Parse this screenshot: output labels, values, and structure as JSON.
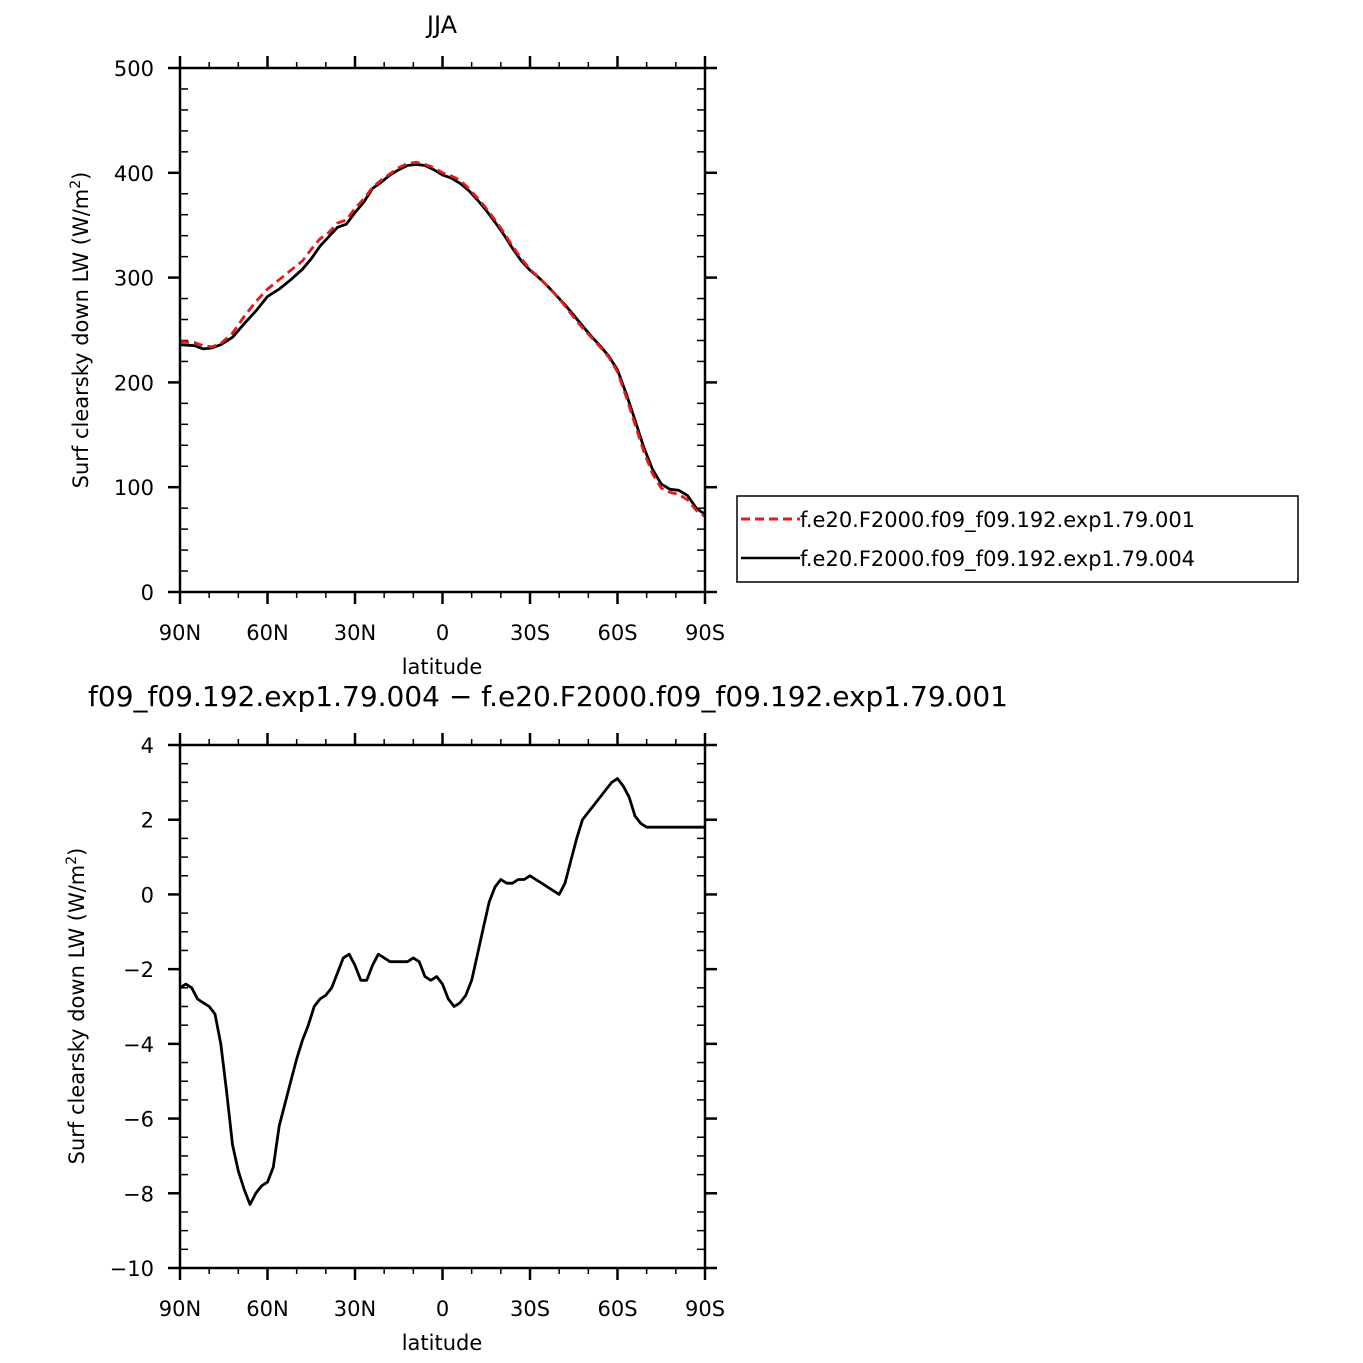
{
  "chart_data": [
    {
      "type": "line",
      "title": "JJA",
      "xlabel": "latitude",
      "ylabel": "Surf clearsky down LW (W/m²)",
      "xlim": [
        90,
        -90
      ],
      "ylim": [
        0,
        500
      ],
      "x_ticks": [
        {
          "value": 90,
          "label": "90N"
        },
        {
          "value": 60,
          "label": "60N"
        },
        {
          "value": 30,
          "label": "30N"
        },
        {
          "value": 0,
          "label": "0"
        },
        {
          "value": -30,
          "label": "30S"
        },
        {
          "value": -60,
          "label": "60S"
        },
        {
          "value": -90,
          "label": "90S"
        }
      ],
      "y_ticks": [
        {
          "value": 0,
          "label": "0"
        },
        {
          "value": 100,
          "label": "100"
        },
        {
          "value": 200,
          "label": "200"
        },
        {
          "value": 300,
          "label": "300"
        },
        {
          "value": 400,
          "label": "400"
        },
        {
          "value": 500,
          "label": "500"
        }
      ],
      "legend_position": "right",
      "series": [
        {
          "name": "f.e20.F2000.f09_f09.192.exp1.79.001",
          "color": "#e8191b",
          "dash": "dashed",
          "x": [
            90,
            85,
            82,
            79,
            76,
            72,
            68,
            64,
            60,
            56,
            52,
            48,
            45,
            42,
            39,
            36,
            33,
            30,
            27,
            24,
            21,
            18,
            15,
            12,
            9,
            6,
            3,
            0,
            -3,
            -6,
            -9,
            -12,
            -15,
            -18,
            -21,
            -24,
            -27,
            -30,
            -33,
            -36,
            -39,
            -42,
            -45,
            -48,
            -51,
            -54,
            -57,
            -60,
            -63,
            -66,
            -69,
            -72,
            -75,
            -78,
            -81,
            -84,
            -87,
            -90
          ],
          "values": [
            239,
            238,
            235,
            234,
            237,
            247,
            263,
            277,
            289,
            298,
            307,
            316,
            327,
            337,
            343,
            352,
            355,
            366,
            375,
            386,
            393,
            399,
            405,
            409,
            410,
            408,
            405,
            400,
            397,
            393,
            385,
            376,
            366,
            355,
            343,
            330,
            318,
            308,
            300,
            292,
            283,
            273,
            262,
            252,
            243,
            234,
            224,
            210,
            186,
            160,
            134,
            113,
            99,
            95,
            93,
            88,
            78,
            72
          ]
        },
        {
          "name": "f.e20.F2000.f09_f09.192.exp1.79.004",
          "color": "#000000",
          "dash": "solid",
          "x": [
            90,
            85,
            82,
            79,
            76,
            72,
            68,
            64,
            60,
            56,
            52,
            48,
            45,
            42,
            39,
            36,
            33,
            30,
            27,
            24,
            21,
            18,
            15,
            12,
            9,
            6,
            3,
            0,
            -3,
            -6,
            -9,
            -12,
            -15,
            -18,
            -21,
            -24,
            -27,
            -30,
            -33,
            -36,
            -39,
            -42,
            -45,
            -48,
            -51,
            -54,
            -57,
            -60,
            -63,
            -66,
            -69,
            -72,
            -75,
            -78,
            -81,
            -84,
            -87,
            -90
          ],
          "values": [
            236,
            235,
            232,
            233,
            236,
            243,
            256,
            268,
            282,
            289,
            298,
            308,
            318,
            330,
            339,
            348,
            351,
            362,
            372,
            385,
            391,
            398,
            403,
            407,
            408,
            407,
            403,
            398,
            395,
            390,
            383,
            374,
            364,
            353,
            341,
            328,
            316,
            307,
            300,
            292,
            283,
            274,
            264,
            254,
            244,
            235,
            225,
            212,
            189,
            164,
            138,
            117,
            103,
            98,
            97,
            92,
            80,
            74
          ]
        }
      ]
    },
    {
      "type": "line",
      "title": "f09_f09.192.exp1.79.004 − f.e20.F2000.f09_f09.192.exp1.79.001",
      "xlabel": "latitude",
      "ylabel": "Surf clearsky down LW (W/m²)",
      "xlim": [
        90,
        -90
      ],
      "ylim": [
        -10,
        4
      ],
      "x_ticks": [
        {
          "value": 90,
          "label": "90N"
        },
        {
          "value": 60,
          "label": "60N"
        },
        {
          "value": 30,
          "label": "30N"
        },
        {
          "value": 0,
          "label": "0"
        },
        {
          "value": -30,
          "label": "30S"
        },
        {
          "value": -60,
          "label": "60S"
        },
        {
          "value": -90,
          "label": "90S"
        }
      ],
      "y_ticks": [
        {
          "value": -10,
          "label": "−10"
        },
        {
          "value": -8,
          "label": "−8"
        },
        {
          "value": -6,
          "label": "−6"
        },
        {
          "value": -4,
          "label": "−4"
        },
        {
          "value": -2,
          "label": "−2"
        },
        {
          "value": 0,
          "label": "0"
        },
        {
          "value": 2,
          "label": "2"
        },
        {
          "value": 4,
          "label": "4"
        }
      ],
      "series": [
        {
          "color": "#000000",
          "x": [
            90,
            88,
            86,
            84,
            82,
            80,
            78,
            76,
            74,
            72,
            70,
            68,
            66,
            64,
            62,
            60,
            58,
            56,
            54,
            52,
            50,
            48,
            46,
            44,
            42,
            40,
            38,
            36,
            34,
            32,
            30,
            28,
            26,
            24,
            22,
            20,
            18,
            16,
            14,
            12,
            10,
            8,
            6,
            4,
            2,
            0,
            -2,
            -4,
            -6,
            -8,
            -10,
            -12,
            -14,
            -16,
            -18,
            -20,
            -22,
            -24,
            -26,
            -28,
            -30,
            -32,
            -34,
            -36,
            -38,
            -40,
            -42,
            -44,
            -46,
            -48,
            -50,
            -52,
            -54,
            -56,
            -58,
            -60,
            -62,
            -64,
            -66,
            -68,
            -70,
            -72,
            -74,
            -76,
            -78,
            -80,
            -82,
            -84,
            -86,
            -88,
            -90
          ],
          "values": [
            -2.5,
            -2.4,
            -2.5,
            -2.8,
            -2.9,
            -3.0,
            -3.2,
            -4.0,
            -5.3,
            -6.7,
            -7.4,
            -7.9,
            -8.3,
            -8.0,
            -7.8,
            -7.7,
            -7.3,
            -6.2,
            -5.6,
            -5.0,
            -4.4,
            -3.9,
            -3.5,
            -3.0,
            -2.8,
            -2.7,
            -2.5,
            -2.1,
            -1.7,
            -1.6,
            -1.9,
            -2.3,
            -2.3,
            -1.9,
            -1.6,
            -1.7,
            -1.8,
            -1.8,
            -1.8,
            -1.8,
            -1.7,
            -1.8,
            -2.2,
            -2.3,
            -2.2,
            -2.4,
            -2.8,
            -3.0,
            -2.9,
            -2.7,
            -2.3,
            -1.6,
            -0.9,
            -0.2,
            0.2,
            0.4,
            0.3,
            0.3,
            0.4,
            0.4,
            0.5,
            0.4,
            0.3,
            0.2,
            0.1,
            0.0,
            0.3,
            0.9,
            1.5,
            2.0,
            2.2,
            2.4,
            2.6,
            2.8,
            3.0,
            3.1,
            2.9,
            2.6,
            2.1,
            1.9,
            1.8,
            1.8,
            1.8,
            1.8,
            1.8,
            1.8,
            1.8,
            1.8,
            1.8,
            1.8,
            1.8
          ]
        }
      ]
    }
  ]
}
